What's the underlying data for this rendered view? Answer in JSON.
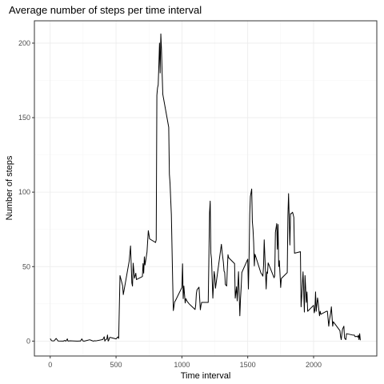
{
  "chart_data": {
    "type": "line",
    "title": "Average number of steps per time interval",
    "xlabel": "Time interval",
    "ylabel": "Number of steps",
    "xlim": [
      -120,
      2480
    ],
    "ylim": [
      -10,
      215
    ],
    "x_ticks": [
      0,
      500,
      1000,
      1500,
      2000
    ],
    "y_ticks": [
      0,
      50,
      100,
      150,
      200
    ],
    "grid": true,
    "legend": "none",
    "colors": {
      "line": "#000000",
      "grid_major": "#ebebeb",
      "grid_minor": "#f4f4f4",
      "panel_border": "#333333",
      "tick_text": "#4d4d4d"
    },
    "series": [
      {
        "x": [
          0,
          10,
          20,
          30,
          45,
          60,
          100,
          110,
          120,
          130,
          135,
          150,
          200,
          210,
          225,
          230,
          240,
          250,
          260,
          300,
          320,
          330,
          340,
          345,
          400,
          410,
          415,
          420,
          430,
          435,
          440,
          445,
          450,
          455,
          500,
          505,
          510,
          515,
          520,
          530,
          550,
          555,
          600,
          610,
          620,
          625,
          630,
          640,
          650,
          655,
          700,
          705,
          710,
          715,
          720,
          735,
          745,
          755,
          800,
          805,
          810,
          815,
          820,
          825,
          830,
          835,
          840,
          845,
          850,
          855,
          900,
          905,
          910,
          915,
          920,
          930,
          935,
          945,
          950,
          1000,
          1005,
          1010,
          1015,
          1025,
          1030,
          1040,
          1055,
          1100,
          1105,
          1110,
          1115,
          1130,
          1140,
          1145,
          1150,
          1200,
          1210,
          1215,
          1220,
          1225,
          1235,
          1245,
          1250,
          1255,
          1300,
          1305,
          1315,
          1320,
          1325,
          1330,
          1340,
          1345,
          1350,
          1355,
          1400,
          1405,
          1415,
          1420,
          1430,
          1440,
          1445,
          1450,
          1455,
          1500,
          1505,
          1510,
          1515,
          1520,
          1530,
          1535,
          1540,
          1545,
          1550,
          1555,
          1600,
          1605,
          1615,
          1620,
          1625,
          1640,
          1645,
          1650,
          1655,
          1700,
          1705,
          1710,
          1720,
          1725,
          1730,
          1735,
          1740,
          1750,
          1755,
          1800,
          1805,
          1810,
          1820,
          1825,
          1830,
          1840,
          1845,
          1850,
          1855,
          1900,
          1905,
          1910,
          1920,
          1930,
          1935,
          1945,
          1950,
          1955,
          2000,
          2005,
          2010,
          2015,
          2020,
          2030,
          2035,
          2040,
          2045,
          2050,
          2055,
          2100,
          2105,
          2115,
          2120,
          2130,
          2135,
          2145,
          2150,
          2200,
          2205,
          2210,
          2215,
          2220,
          2230,
          2235,
          2245,
          2250,
          2300,
          2310,
          2315,
          2320,
          2325,
          2335,
          2340,
          2345,
          2350,
          2355
        ],
        "y": [
          1.7,
          0.3,
          0.1,
          0.2,
          1.8,
          0.1,
          0.0,
          0.4,
          0.0,
          1.5,
          0.0,
          0.2,
          0.0,
          0.0,
          0.1,
          0.0,
          1.5,
          0.0,
          0.0,
          0.9,
          0.2,
          0.0,
          0.3,
          0.1,
          1.1,
          2.9,
          0.0,
          0.8,
          1.4,
          4.1,
          0.0,
          0.6,
          2.2,
          2.5,
          1.5,
          1.9,
          2.5,
          2.8,
          1.8,
          44.0,
          37.2,
          31.2,
          53.8,
          63.9,
          39.0,
          36.9,
          52.3,
          42.2,
          45.6,
          41.3,
          43.3,
          52.0,
          45.6,
          56.6,
          51.1,
          59.8,
          74.1,
          68.6,
          66.2,
          68.0,
          165.0,
          170.0,
          172.0,
          185.0,
          200.0,
          180.0,
          206.2,
          195.9,
          179.6,
          165.7,
          143.5,
          112.0,
          106.0,
          95.0,
          85.0,
          40.0,
          20.5,
          26.4,
          27.0,
          36.0,
          51.9,
          28.5,
          37.0,
          25.6,
          28.5,
          26.7,
          25.0,
          21.2,
          24.3,
          32.0,
          34.5,
          36.2,
          21.0,
          24.0,
          26.0,
          26.0,
          86.2,
          94.0,
          59.0,
          55.0,
          28.8,
          46.7,
          43.4,
          35.5,
          65.0,
          60.0,
          53.0,
          47.0,
          46.0,
          38.0,
          37.0,
          48.4,
          58.0,
          56.0,
          52.0,
          28.8,
          36.5,
          27.0,
          46.6,
          17.0,
          28.4,
          36.0,
          46.0,
          55.0,
          35.0,
          55.2,
          85.0,
          97.0,
          102.1,
          80.1,
          75.0,
          66.0,
          50.5,
          58.3,
          45.7,
          45.2,
          43.6,
          50.3,
          68.0,
          35.0,
          46.4,
          45.4,
          52.5,
          42.5,
          43.9,
          73.0,
          78.9,
          61.7,
          78.3,
          50.0,
          54.0,
          36.0,
          42.0,
          46.0,
          84.0,
          99.0,
          64.5,
          85.6,
          85.5,
          86.5,
          85.0,
          83.0,
          59.0,
          60.0,
          23.0,
          30.0,
          46.5,
          19.5,
          44.0,
          26.0,
          33.0,
          20.0,
          24.0,
          19.0,
          21.0,
          33.0,
          20.0,
          29.0,
          26.0,
          21.0,
          17.0,
          20.0,
          18.0,
          20.1,
          20.0,
          10.0,
          14.0,
          19.0,
          23.0,
          10.0,
          13.0,
          7.0,
          3.0,
          1.0,
          5.0,
          8.0,
          10.0,
          2.0,
          1.0,
          5.0,
          4.0,
          4.0,
          3.0,
          3.0,
          3.3,
          2.7,
          4.0,
          1.0,
          5.0,
          0.6
        ]
      }
    ]
  }
}
